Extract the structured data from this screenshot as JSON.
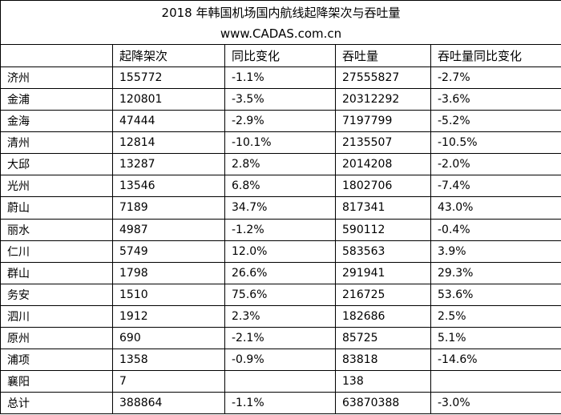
{
  "header": {
    "title": "2018 年韩国机场国内航线起降架次与吞吐量",
    "subtitle": "www.CADAS.com.cn"
  },
  "table": {
    "columns": [
      "起降架次",
      "同比变化",
      "吞吐量",
      "吞吐量同比变化"
    ],
    "rows": [
      [
        "济州",
        "155772",
        "-1.1%",
        "27555827",
        "-2.7%"
      ],
      [
        "金浦",
        "120801",
        "-3.5%",
        "20312292",
        "-3.6%"
      ],
      [
        "金海",
        "47444",
        "-2.9%",
        "7197799",
        "-5.2%"
      ],
      [
        "清州",
        "12814",
        "-10.1%",
        "2135507",
        "-10.5%"
      ],
      [
        "大邱",
        "13287",
        "2.8%",
        "2014208",
        "-2.0%"
      ],
      [
        "光州",
        "13546",
        "6.8%",
        "1802706",
        "-7.4%"
      ],
      [
        "蔚山",
        "7189",
        "34.7%",
        "817341",
        "43.0%"
      ],
      [
        "丽水",
        "4987",
        "-1.2%",
        "590112",
        "-0.4%"
      ],
      [
        "仁川",
        "5749",
        "12.0%",
        "583563",
        "3.9%"
      ],
      [
        "群山",
        "1798",
        "26.6%",
        "291941",
        "29.3%"
      ],
      [
        "务安",
        "1510",
        "75.6%",
        "216725",
        "53.6%"
      ],
      [
        "泗川",
        "1912",
        "2.3%",
        "182686",
        "2.5%"
      ],
      [
        "原州",
        "690",
        "-2.1%",
        "85725",
        "5.1%"
      ],
      [
        "浦项",
        "1358",
        "-0.9%",
        "83818",
        "-14.6%"
      ],
      [
        "襄阳",
        "7",
        null,
        "138",
        null
      ],
      [
        "总计",
        "388864",
        "-1.1%",
        "63870388",
        "-3.0%"
      ]
    ]
  }
}
